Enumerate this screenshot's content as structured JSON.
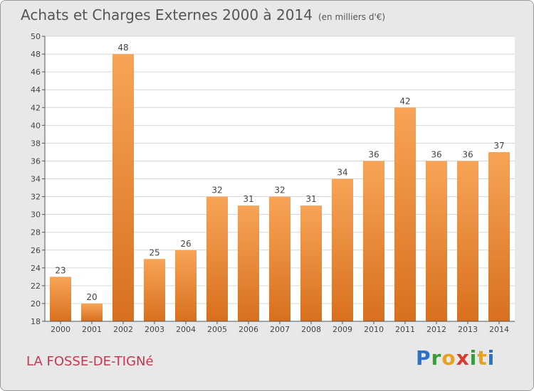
{
  "header": {
    "title": "Achats et Charges Externes 2000 à 2014",
    "unit": "(en milliers d'€)"
  },
  "footer": {
    "commune": "LA FOSSE-DE-TIGNé",
    "logo": [
      "P",
      "r",
      "o",
      "x",
      "i",
      "t",
      "i"
    ]
  },
  "colors": {
    "bar_top": "#f7a457",
    "bar_bottom": "#d8701e",
    "commune": "#c8374e",
    "logo": [
      "#2a72c8",
      "#3a9a3e",
      "#e8a21b",
      "#d93a2b",
      "#3a9a3e",
      "#e8a21b",
      "#2a72c8"
    ]
  },
  "chart_data": {
    "type": "bar",
    "title": "Achats et Charges Externes 2000 à 2014",
    "subtitle": "(en milliers d'€)",
    "categories": [
      "2000",
      "2001",
      "2002",
      "2003",
      "2004",
      "2005",
      "2006",
      "2007",
      "2008",
      "2009",
      "2010",
      "2011",
      "2012",
      "2013",
      "2014"
    ],
    "values": [
      23,
      20,
      48,
      25,
      26,
      32,
      31,
      32,
      31,
      34,
      36,
      42,
      36,
      36,
      37
    ],
    "ylim": [
      18,
      50
    ],
    "yticks": [
      18,
      20,
      22,
      24,
      26,
      28,
      30,
      32,
      34,
      36,
      38,
      40,
      42,
      44,
      46,
      48,
      50
    ],
    "grid": true,
    "legend": "none"
  }
}
